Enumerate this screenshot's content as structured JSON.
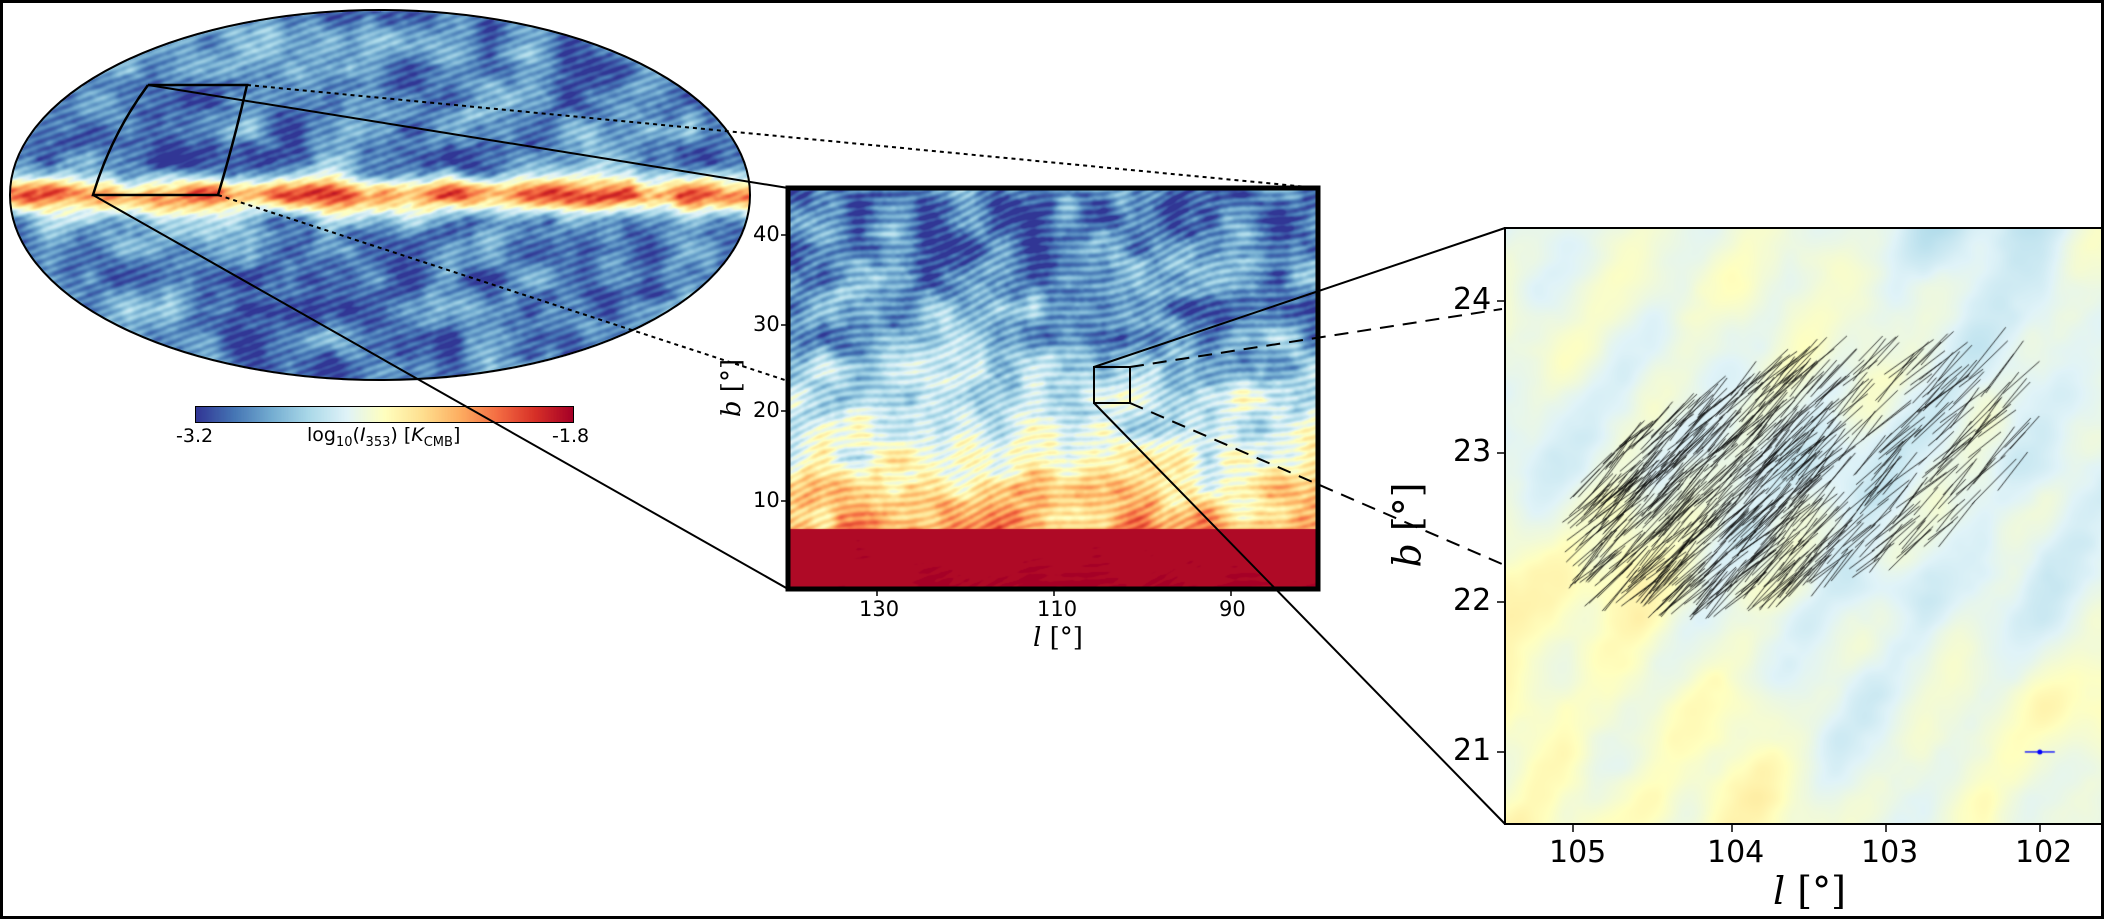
{
  "chart_data": [
    {
      "type": "heatmap",
      "panel": "all-sky",
      "projection": "Mollweide",
      "colormap": "RdYlBu_r",
      "colorbar": {
        "label_prefix": "log",
        "label_sub": "10",
        "label_open": "(",
        "label_I": "I",
        "label_I_sub": "353",
        "label_close": ") [",
        "label_K": "K",
        "label_K_sub": "CMB",
        "label_end": "]",
        "min_label": "-3.2",
        "max_label": "-1.8",
        "range": [
          -3.2,
          -1.8
        ]
      },
      "zoom_box": {
        "l": [
          80,
          140
        ],
        "b": [
          0,
          45
        ]
      }
    },
    {
      "type": "heatmap",
      "panel": "zoom-1",
      "colormap": "RdYlBu_r",
      "xlabel": "l [°]",
      "ylabel": "b [°]",
      "xlabel_var": "l",
      "ylabel_var": "b",
      "unit": "[°]",
      "xlim": [
        140,
        80
      ],
      "ylim": [
        0,
        45
      ],
      "xticks": [
        "130",
        "110",
        "90"
      ],
      "yticks": [
        "10",
        "20",
        "30",
        "40"
      ],
      "zoom_box": {
        "l": [
          105.5,
          101.5
        ],
        "b": [
          20.5,
          24.5
        ]
      }
    },
    {
      "type": "heatmap",
      "panel": "zoom-2",
      "colormap": "RdYlBu_r",
      "overlay": "polarization segments (black), one reference marker (blue)",
      "xlabel_var": "l",
      "ylabel_var": "b",
      "unit": "[°]",
      "xlim": [
        105.44,
        101.6
      ],
      "ylim": [
        20.52,
        24.49
      ],
      "xticks": [
        "105",
        "104",
        "103",
        "102"
      ],
      "yticks": [
        "21",
        "22",
        "23",
        "24"
      ],
      "marker": {
        "l": 102.0,
        "b": 21.0,
        "color": "#0000ff"
      }
    }
  ],
  "colors": {
    "cmap": [
      "#313695",
      "#4575b4",
      "#74add1",
      "#abd9e9",
      "#e0f3f8",
      "#ffffbf",
      "#fee090",
      "#fdae61",
      "#f46d43",
      "#d73027",
      "#a50026"
    ],
    "segments": "#000000",
    "marker": "#0000ff"
  }
}
